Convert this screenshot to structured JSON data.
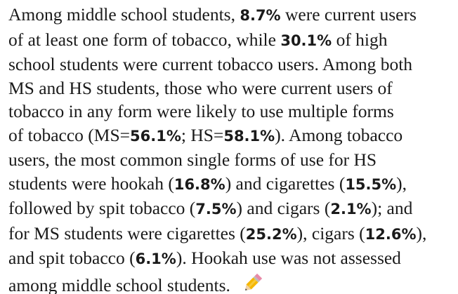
{
  "paragraph": {
    "lines": [
      [
        {
          "text": "Among middle school students, ",
          "bold": false
        },
        {
          "text": "8.7%",
          "bold": true
        },
        {
          "text": " were current users",
          "bold": false
        }
      ],
      [
        {
          "text": "of at least one form of tobacco, while ",
          "bold": false
        },
        {
          "text": "30.1%",
          "bold": true
        },
        {
          "text": " of high",
          "bold": false
        }
      ],
      [
        {
          "text": "school students were current tobacco users. Among both",
          "bold": false
        }
      ],
      [
        {
          "text": "MS and HS students, those who were current users of",
          "bold": false
        }
      ],
      [
        {
          "text": "tobacco in any form were likely to use multiple forms",
          "bold": false
        }
      ],
      [
        {
          "text": "of tobacco (MS=",
          "bold": false
        },
        {
          "text": "56.1%",
          "bold": true
        },
        {
          "text": "; HS=",
          "bold": false
        },
        {
          "text": "58.1%",
          "bold": true
        },
        {
          "text": "). Among tobacco",
          "bold": false
        }
      ],
      [
        {
          "text": "users, the most common single forms of use for HS",
          "bold": false
        }
      ],
      [
        {
          "text": "students were hookah (",
          "bold": false
        },
        {
          "text": "16.8%",
          "bold": true
        },
        {
          "text": ") and cigarettes (",
          "bold": false
        },
        {
          "text": "15.5%",
          "bold": true
        },
        {
          "text": "),",
          "bold": false
        }
      ],
      [
        {
          "text": "followed by spit tobacco (",
          "bold": false
        },
        {
          "text": "7.5%",
          "bold": true
        },
        {
          "text": ") and cigars (",
          "bold": false
        },
        {
          "text": "2.1%",
          "bold": true
        },
        {
          "text": "); and",
          "bold": false
        }
      ],
      [
        {
          "text": "for MS students were cigarettes (",
          "bold": false
        },
        {
          "text": "25.2%",
          "bold": true
        },
        {
          "text": "), cigars (",
          "bold": false
        },
        {
          "text": "12.6%",
          "bold": true
        },
        {
          "text": "),",
          "bold": false
        }
      ],
      [
        {
          "text": "and spit tobacco (",
          "bold": false
        },
        {
          "text": "6.1%",
          "bold": true
        },
        {
          "text": "). Hookah use was not assessed",
          "bold": false
        }
      ],
      [
        {
          "text": "among middle school students.",
          "bold": false
        }
      ]
    ]
  }
}
